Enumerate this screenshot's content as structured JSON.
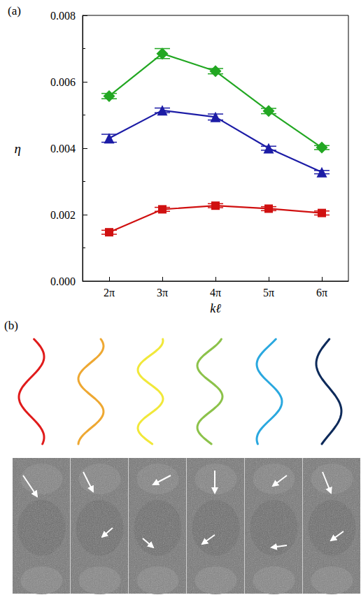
{
  "chart_data": {
    "type": "line",
    "title": "(a)",
    "x_label": "kℓ",
    "y_label": "η",
    "categories": [
      "2π",
      "3π",
      "4π",
      "5π",
      "6π"
    ],
    "ylim": [
      0,
      0.008
    ],
    "yticks": [
      {
        "value": 0,
        "label": "0.000"
      },
      {
        "value": 0.002,
        "label": "0.002"
      },
      {
        "value": 0.004,
        "label": "0.004"
      },
      {
        "value": 0.006,
        "label": "0.006"
      },
      {
        "value": 0.008,
        "label": "0.008"
      }
    ],
    "grid": false,
    "series": [
      {
        "color": "#22a722",
        "marker": "diamond",
        "values": [
          0.00557,
          0.00685,
          0.00632,
          0.00512,
          0.00402
        ],
        "errors": [
          8e-05,
          0.00015,
          8e-05,
          8e-05,
          6e-05
        ]
      },
      {
        "color": "#1c1ca6",
        "marker": "triangle",
        "values": [
          0.0043,
          0.00514,
          0.00494,
          0.004,
          0.00328
        ],
        "errors": [
          0.00012,
          7e-05,
          9e-05,
          6e-05,
          5e-05
        ]
      },
      {
        "color": "#d01010",
        "marker": "rect",
        "values": [
          0.00147,
          0.00216,
          0.00227,
          0.00218,
          0.00205
        ],
        "errors": [
          6e-05,
          6e-05,
          6e-05,
          6e-05,
          6e-05
        ]
      }
    ]
  },
  "panels": {
    "b": "(b)"
  }
}
